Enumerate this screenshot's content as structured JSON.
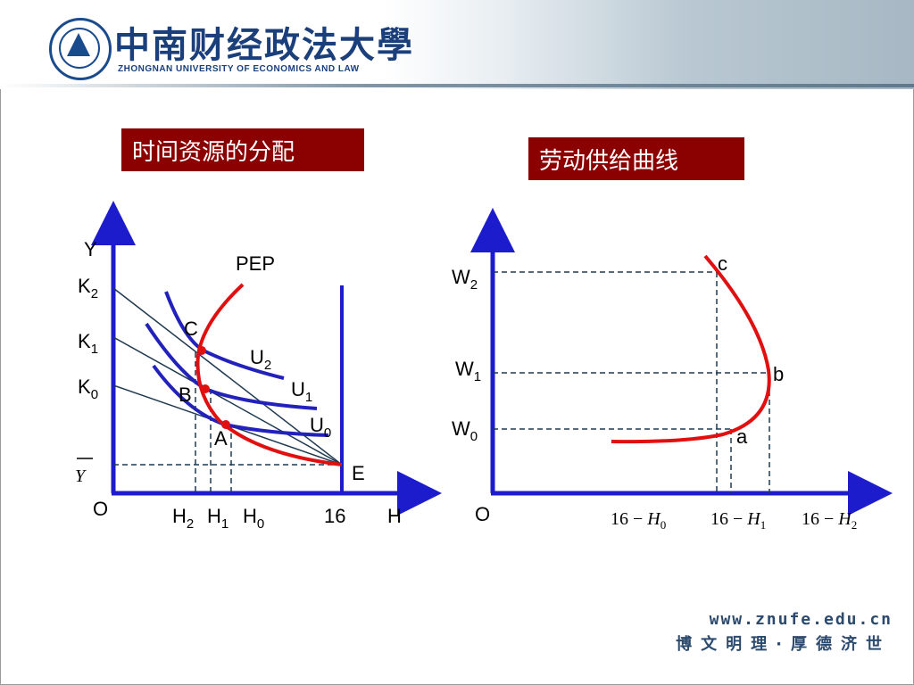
{
  "header": {
    "university_cn": "中南财经政法大學",
    "university_en": "ZHONGNAN UNIVERSITY OF ECONOMICS AND LAW"
  },
  "left_panel": {
    "title": "时间资源的分配",
    "y_axis_label": "Y",
    "x_axis_label": "H",
    "origin": "O",
    "y_ticks": [
      {
        "base": "K",
        "sub": "2"
      },
      {
        "base": "K",
        "sub": "1"
      },
      {
        "base": "K",
        "sub": "0"
      }
    ],
    "ybar": "Y",
    "x_ticks": [
      {
        "base": "H",
        "sub": "2"
      },
      {
        "base": "H",
        "sub": "1"
      },
      {
        "base": "H",
        "sub": "0"
      }
    ],
    "x_tick_16": "16",
    "curve_label": "PEP",
    "utility_labels": [
      {
        "base": "U",
        "sub": "2"
      },
      {
        "base": "U",
        "sub": "1"
      },
      {
        "base": "U",
        "sub": "0"
      }
    ],
    "points": {
      "c": "C",
      "b": "B",
      "a": "A",
      "e": "E"
    }
  },
  "right_panel": {
    "title": "劳动供给曲线",
    "origin": "O",
    "y_ticks": [
      {
        "base": "W",
        "sub": "2"
      },
      {
        "base": "W",
        "sub": "1"
      },
      {
        "base": "W",
        "sub": "0"
      }
    ],
    "x_ticks": [
      {
        "prefix": "16 − ",
        "var": "H",
        "sub": "0"
      },
      {
        "prefix": "16 − ",
        "var": "H",
        "sub": "1"
      },
      {
        "prefix": "16 − ",
        "var": "H",
        "sub": "2"
      }
    ],
    "points": {
      "c": "c",
      "b": "b",
      "a": "a"
    }
  },
  "footer": {
    "url": "www.znufe.edu.cn",
    "motto": "博文明理·厚德济世"
  },
  "colors": {
    "axis": "#1c1ccc",
    "pep": "#e01010",
    "title_bg": "#8b0000",
    "brand": "#1a3f7a"
  }
}
